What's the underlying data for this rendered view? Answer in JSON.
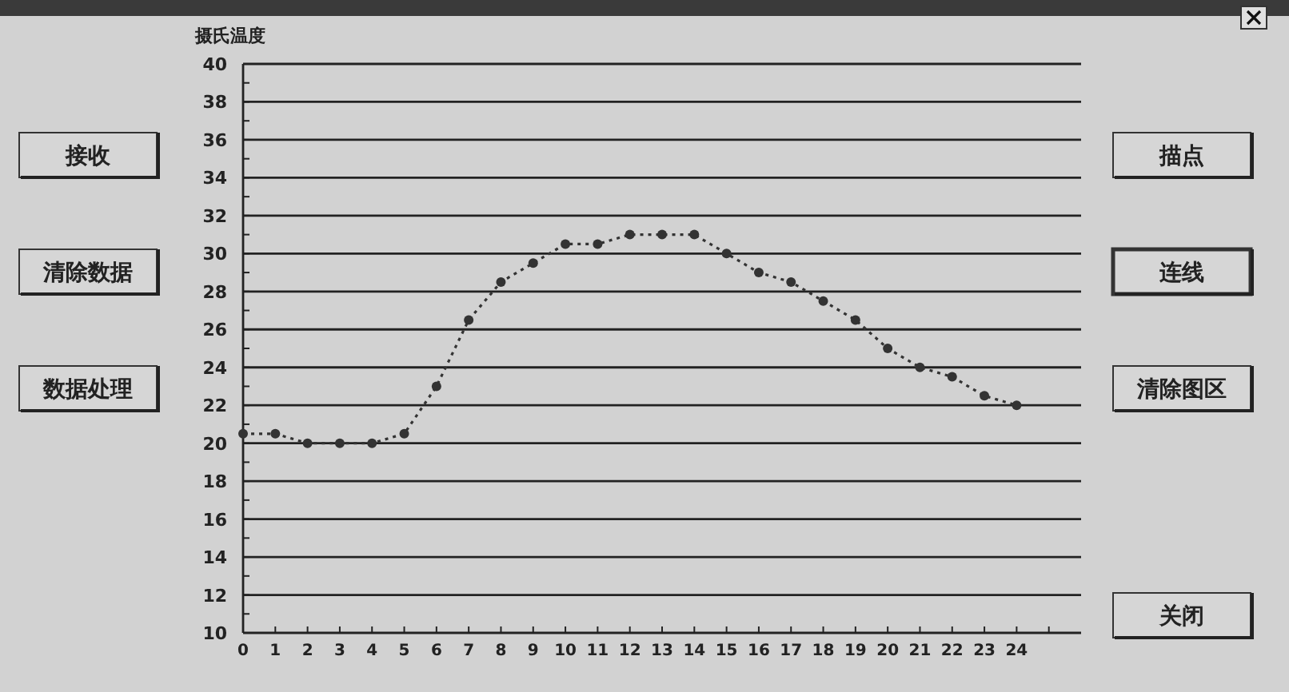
{
  "chart_data": {
    "type": "line",
    "ylabel": "摄氏温度",
    "x": [
      0,
      1,
      2,
      3,
      4,
      5,
      6,
      7,
      8,
      9,
      10,
      11,
      12,
      13,
      14,
      15,
      16,
      17,
      18,
      19,
      20,
      21,
      22,
      23,
      24
    ],
    "series": [
      {
        "color": "#333333",
        "values": [
          20.5,
          20.5,
          20,
          20,
          20,
          20.5,
          23,
          26.5,
          28.5,
          29.5,
          30.5,
          30.5,
          31,
          31,
          31,
          30,
          29,
          28.5,
          27.5,
          26.5,
          25,
          24,
          23.5,
          22.5,
          22
        ]
      }
    ],
    "xlim": [
      0,
      26
    ],
    "xticks": [
      0,
      1,
      2,
      3,
      4,
      5,
      6,
      7,
      8,
      9,
      10,
      11,
      12,
      13,
      14,
      15,
      16,
      17,
      18,
      19,
      20,
      21,
      22,
      23,
      24,
      {
        "value": 25,
        "label": null
      }
    ],
    "ylim": [
      10,
      40
    ],
    "yticks": [
      10,
      {
        "value": 11,
        "label": null
      },
      12,
      {
        "value": 13,
        "label": null
      },
      14,
      {
        "value": 15,
        "label": null
      },
      16,
      {
        "value": 17,
        "label": null
      },
      18,
      {
        "value": 19,
        "label": null
      },
      20,
      {
        "value": 21,
        "label": null
      },
      22,
      {
        "value": 23,
        "label": null
      },
      24,
      {
        "value": 25,
        "label": null
      },
      26,
      {
        "value": 27,
        "label": null
      },
      28,
      {
        "value": 29,
        "label": null
      },
      30,
      {
        "value": 31,
        "label": null
      },
      32,
      {
        "value": 33,
        "label": null
      },
      34,
      {
        "value": 35,
        "label": null
      },
      36,
      {
        "value": 37,
        "label": null
      },
      38,
      {
        "value": 39,
        "label": null
      },
      40
    ],
    "grid": "y",
    "marker": "circle",
    "line_style": "dotted",
    "annotations": [
      "接收",
      "清除数据",
      "数据处理",
      "描点",
      "连线",
      "清除图区",
      "关闭"
    ]
  }
}
